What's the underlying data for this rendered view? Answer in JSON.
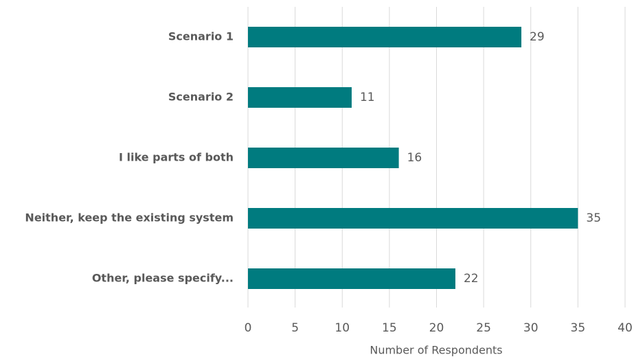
{
  "chart_data": {
    "type": "barh",
    "categories": [
      "Scenario 1",
      "Scenario 2",
      "I like parts of both",
      "Neither, keep the existing system",
      "Other, please specify..."
    ],
    "values": [
      29,
      11,
      16,
      35,
      22
    ],
    "color": "#007b7f",
    "xlabel": "Number of Respondents",
    "xlim": [
      0,
      40
    ],
    "xticks": [
      0,
      5,
      10,
      15,
      20,
      25,
      30,
      35,
      40
    ],
    "grid": true
  }
}
